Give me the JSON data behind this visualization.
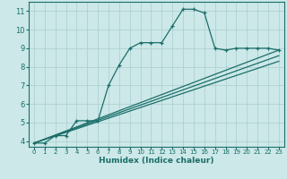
{
  "xlabel": "Humidex (Indice chaleur)",
  "bg_color": "#cce8e8",
  "line_color": "#1a6e6a",
  "grid_color": "#aacece",
  "xlim": [
    -0.5,
    23.5
  ],
  "ylim": [
    3.7,
    11.5
  ],
  "xticks": [
    0,
    1,
    2,
    3,
    4,
    5,
    6,
    7,
    8,
    9,
    10,
    11,
    12,
    13,
    14,
    15,
    16,
    17,
    18,
    19,
    20,
    21,
    22,
    23
  ],
  "yticks": [
    4,
    5,
    6,
    7,
    8,
    9,
    10,
    11
  ],
  "lines": [
    {
      "x": [
        0,
        1,
        2,
        3,
        4,
        5,
        6,
        7,
        8,
        9,
        10,
        11,
        12,
        13,
        14,
        15,
        16,
        17,
        18,
        19,
        20,
        21,
        22,
        23
      ],
      "y": [
        3.9,
        3.9,
        4.3,
        4.3,
        5.1,
        5.1,
        5.1,
        7.0,
        8.1,
        9.0,
        9.3,
        9.3,
        9.3,
        10.2,
        11.1,
        11.1,
        10.9,
        9.0,
        8.9,
        9.0,
        9.0,
        9.0,
        9.0,
        8.9
      ],
      "marker": true
    },
    {
      "x": [
        0,
        23
      ],
      "y": [
        3.9,
        8.9
      ],
      "marker": false
    },
    {
      "x": [
        0,
        23
      ],
      "y": [
        3.9,
        8.6
      ],
      "marker": false
    },
    {
      "x": [
        0,
        23
      ],
      "y": [
        3.9,
        8.3
      ],
      "marker": false
    }
  ]
}
